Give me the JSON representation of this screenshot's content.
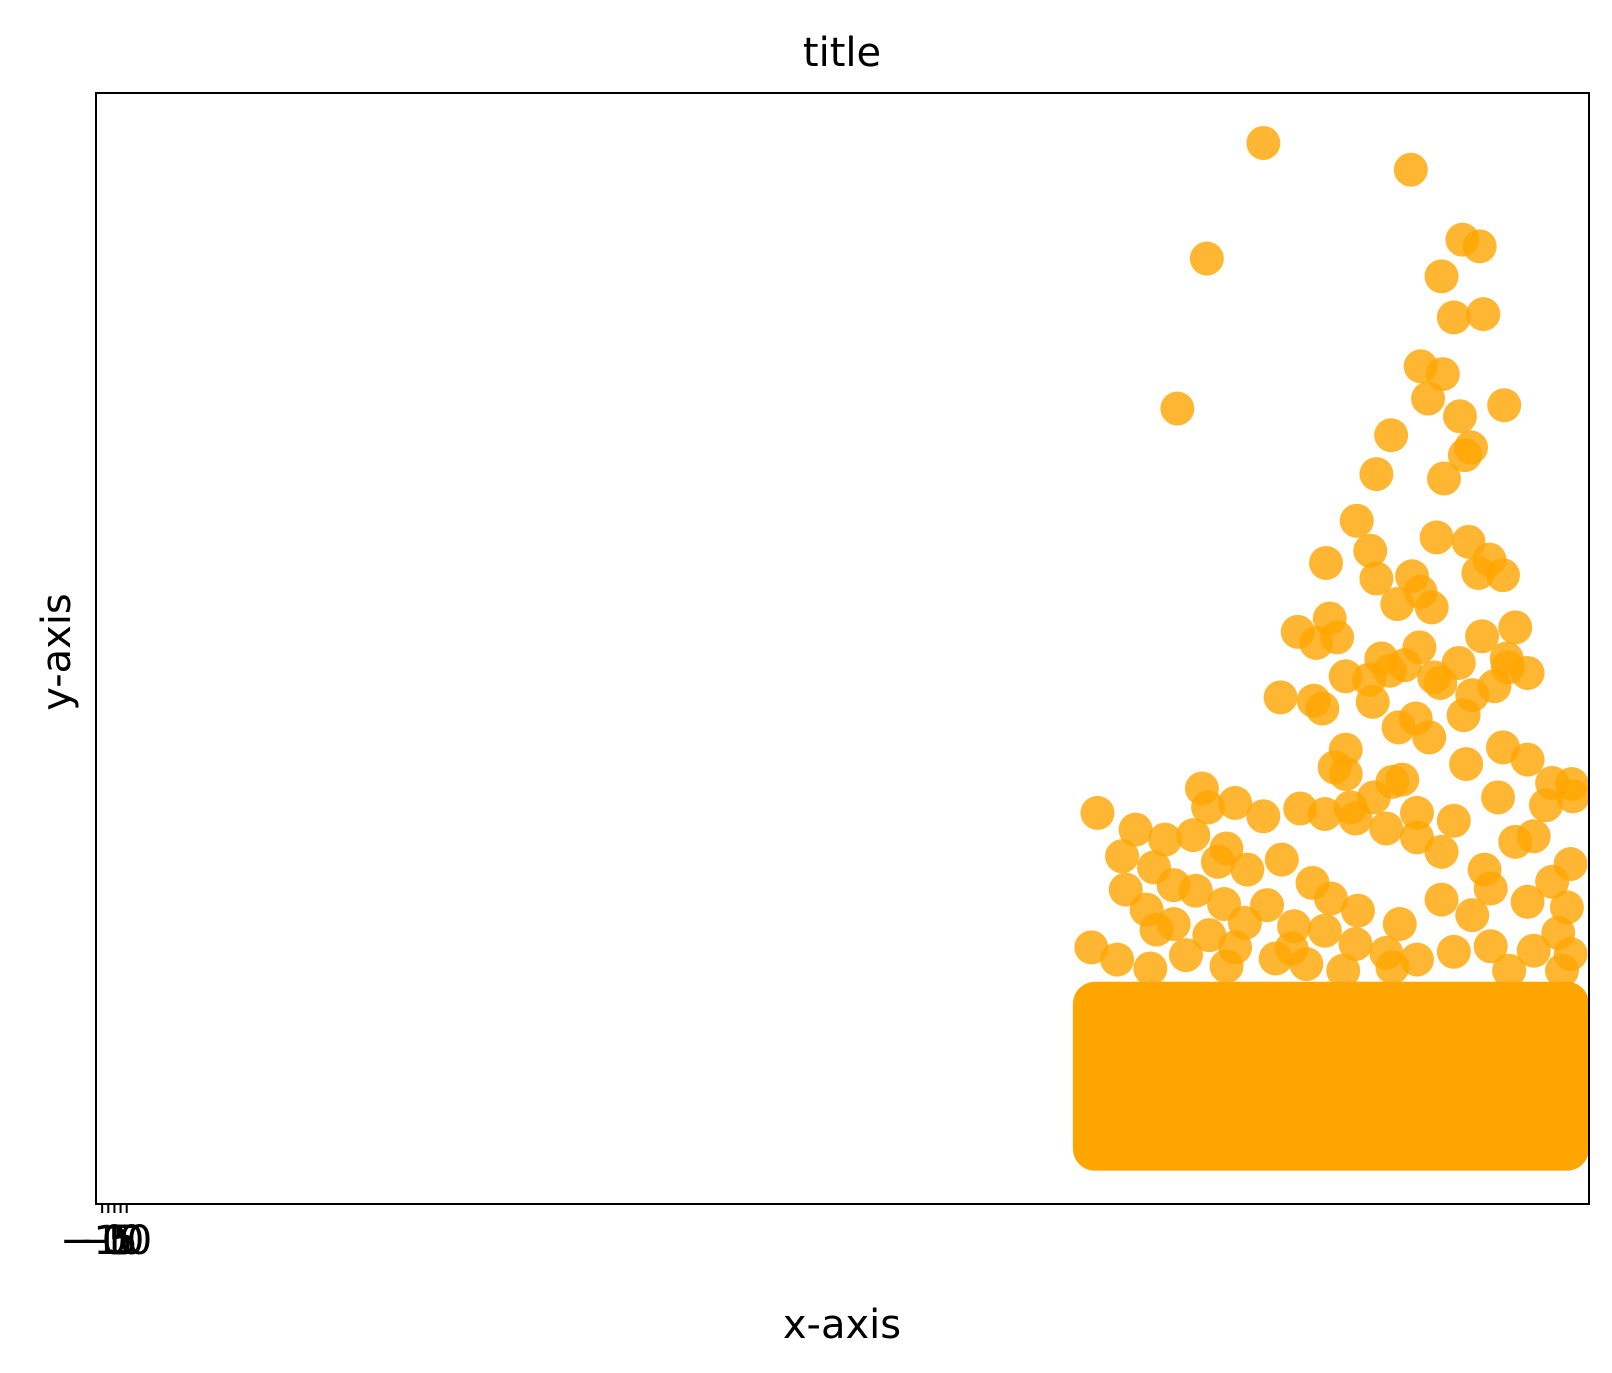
{
  "chart_data": {
    "type": "scatter",
    "title": "title",
    "xlabel": "x-axis",
    "ylabel": "y-axis",
    "xlim": [
      -15,
      1200
    ],
    "ylim": [
      0,
      100
    ],
    "x_ticks": [
      {
        "value": -10,
        "label": "−10"
      },
      {
        "value": -5,
        "label": "−5"
      },
      {
        "value": 0,
        "label": "0"
      },
      {
        "value": 5,
        "label": "5"
      },
      {
        "value": 10,
        "label": "10"
      }
    ],
    "y_ticks": [],
    "grid": false,
    "legend": "none",
    "marker_color": "#FFA500",
    "marker_alpha": 0.8,
    "dense_region": {
      "x_range": [
        780,
        1200
      ],
      "y_range": [
        3,
        20
      ]
    },
    "series": [
      {
        "points": [
          [
            935,
            95.5
          ],
          [
            1055,
            93.1
          ],
          [
            889,
            85.1
          ],
          [
            1097,
            86.8
          ],
          [
            1111,
            86.2
          ],
          [
            1080,
            83.5
          ],
          [
            1090,
            79.8
          ],
          [
            1114,
            80.1
          ],
          [
            1063,
            75.4
          ],
          [
            1081,
            74.7
          ],
          [
            1131,
            71.9
          ],
          [
            1069,
            72.5
          ],
          [
            1095,
            70.9
          ],
          [
            1039,
            69.2
          ],
          [
            1099,
            67.4
          ],
          [
            865,
            71.6
          ],
          [
            1104,
            68.1
          ],
          [
            1082,
            65.3
          ],
          [
            1027,
            65.7
          ],
          [
            986,
            57.7
          ],
          [
            1011,
            61.5
          ],
          [
            1022,
            58.8
          ],
          [
            1056,
            56.5
          ],
          [
            1076,
            60.0
          ],
          [
            1102,
            59.6
          ],
          [
            1119,
            58.0
          ],
          [
            1027,
            56.3
          ],
          [
            1044,
            54.0
          ],
          [
            989,
            52.7
          ],
          [
            995,
            51.0
          ],
          [
            1063,
            55.1
          ],
          [
            1062,
            50.1
          ],
          [
            1110,
            56.8
          ],
          [
            1130,
            56.6
          ],
          [
            1140,
            51.9
          ],
          [
            1113,
            51.1
          ],
          [
            1133,
            49.1
          ],
          [
            1072,
            53.7
          ],
          [
            1050,
            48.5
          ],
          [
            1038,
            48.0
          ],
          [
            1074,
            47.4
          ],
          [
            1094,
            48.7
          ],
          [
            1079,
            46.9
          ],
          [
            1123,
            46.6
          ],
          [
            978,
            50.5
          ],
          [
            963,
            51.5
          ],
          [
            949,
            45.6
          ],
          [
            976,
            45.3
          ],
          [
            1002,
            47.5
          ],
          [
            983,
            44.6
          ],
          [
            1031,
            49.1
          ],
          [
            1021,
            47.2
          ],
          [
            1024,
            45.2
          ],
          [
            1105,
            45.8
          ],
          [
            1134,
            48.3
          ],
          [
            1150,
            47.8
          ],
          [
            1098,
            44.0
          ],
          [
            1070,
            42.0
          ],
          [
            1045,
            42.9
          ],
          [
            1059,
            43.7
          ],
          [
            1002,
            40.9
          ],
          [
            993,
            39.3
          ],
          [
            1002,
            38.7
          ],
          [
            1040,
            38.0
          ],
          [
            1025,
            36.6
          ],
          [
            1006,
            35.7
          ],
          [
            1100,
            39.6
          ],
          [
            1130,
            41.1
          ],
          [
            1150,
            40.0
          ],
          [
            1170,
            37.9
          ],
          [
            1165,
            35.9
          ],
          [
            1186,
            37.8
          ],
          [
            1187,
            36.7
          ],
          [
            1155,
            33.1
          ],
          [
            1140,
            32.6
          ],
          [
            1115,
            30.1
          ],
          [
            1080,
            31.7
          ],
          [
            1060,
            33.0
          ],
          [
            1035,
            33.8
          ],
          [
            1010,
            34.7
          ],
          [
            985,
            35.1
          ],
          [
            965,
            35.6
          ],
          [
            935,
            34.9
          ],
          [
            912,
            36.1
          ],
          [
            885,
            37.4
          ],
          [
            890,
            35.7
          ],
          [
            878,
            33.2
          ],
          [
            905,
            32.0
          ],
          [
            898,
            30.8
          ],
          [
            922,
            30.1
          ],
          [
            950,
            31.0
          ],
          [
            975,
            28.9
          ],
          [
            990,
            27.5
          ],
          [
            1012,
            26.4
          ],
          [
            1046,
            25.2
          ],
          [
            1080,
            27.4
          ],
          [
            1105,
            26.0
          ],
          [
            1120,
            28.4
          ],
          [
            1150,
            27.2
          ],
          [
            1170,
            29.0
          ],
          [
            1185,
            30.6
          ],
          [
            1182,
            26.7
          ],
          [
            1175,
            24.4
          ],
          [
            1155,
            22.8
          ],
          [
            1120,
            23.2
          ],
          [
            1090,
            22.7
          ],
          [
            1060,
            22.0
          ],
          [
            1035,
            22.6
          ],
          [
            1010,
            23.4
          ],
          [
            985,
            24.6
          ],
          [
            960,
            25.0
          ],
          [
            938,
            26.9
          ],
          [
            920,
            25.3
          ],
          [
            903,
            27.0
          ],
          [
            880,
            28.2
          ],
          [
            862,
            28.7
          ],
          [
            846,
            30.3
          ],
          [
            823,
            28.3
          ],
          [
            840,
            26.5
          ],
          [
            862,
            25.2
          ],
          [
            891,
            24.2
          ],
          [
            912,
            23.1
          ],
          [
            945,
            22.1
          ],
          [
            970,
            21.6
          ],
          [
            1000,
            21.0
          ],
          [
            800,
            35.2
          ],
          [
            831,
            33.7
          ],
          [
            820,
            31.3
          ],
          [
            855,
            32.8
          ],
          [
            848,
            24.7
          ],
          [
            872,
            22.4
          ],
          [
            795,
            23.1
          ],
          [
            816,
            22.0
          ],
          [
            843,
            21.2
          ],
          [
            905,
            21.4
          ],
          [
            958,
            23.0
          ],
          [
            1040,
            21.3
          ],
          [
            1135,
            21.0
          ],
          [
            1185,
            22.5
          ],
          [
            1178,
            21.0
          ],
          [
            1090,
            34.5
          ],
          [
            1126,
            36.6
          ],
          [
            1048,
            38.2
          ],
          [
            1060,
            35.2
          ]
        ]
      }
    ]
  }
}
